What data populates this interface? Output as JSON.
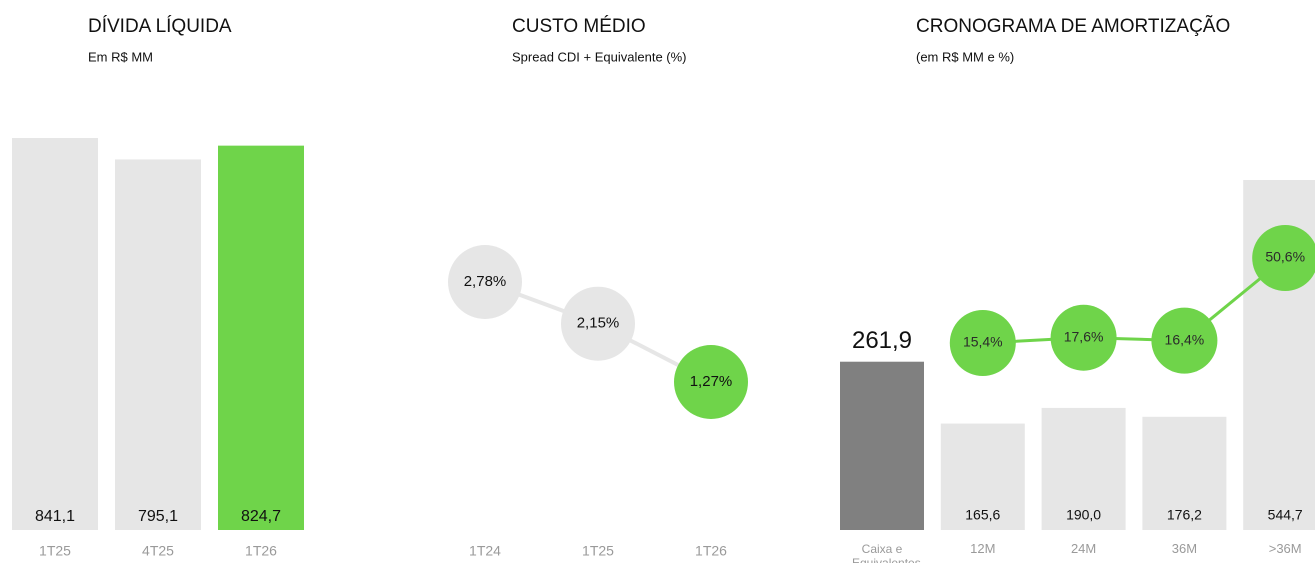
{
  "chart_data": [
    {
      "type": "bar",
      "title": "DÍVIDA LÍQUIDA",
      "subtitle": "Em R$ MM",
      "categories": [
        "1T25",
        "4T25",
        "1T26"
      ],
      "values": [
        841.1,
        795.1,
        824.7
      ],
      "value_labels": [
        "841,1",
        "795,1",
        "824,7"
      ],
      "colors": [
        "#e6e6e6",
        "#e6e6e6",
        "#6fd44a"
      ]
    },
    {
      "type": "line",
      "title": "CUSTO MÉDIO",
      "subtitle": "Spread CDI + Equivalente (%)",
      "categories": [
        "1T24",
        "1T25",
        "1T26"
      ],
      "values": [
        2.78,
        2.15,
        1.27
      ],
      "value_labels": [
        "2,78%",
        "2,15%",
        "1,27%"
      ],
      "colors": [
        "#e6e6e6",
        "#e6e6e6",
        "#6fd44a"
      ],
      "line_color": "#e6e6e6"
    },
    {
      "type": "combo",
      "title": "CRONOGRAMA DE AMORTIZAÇÃO",
      "subtitle": "(em R$ MM e %)",
      "categories": [
        "Caixa e Equivalentes",
        "12M",
        "24M",
        "36M",
        ">36M"
      ],
      "series": [
        {
          "values": [
            261.9,
            165.6,
            190.0,
            176.2,
            544.7
          ],
          "value_labels": [
            "261,9",
            "165,6",
            "190,0",
            "176,2",
            "544,7"
          ],
          "colors": [
            "#808080",
            "#e6e6e6",
            "#e6e6e6",
            "#e6e6e6",
            "#e6e6e6"
          ]
        },
        {
          "values": [
            null,
            15.4,
            17.6,
            16.4,
            50.6
          ],
          "value_labels": [
            null,
            "15,4%",
            "17,6%",
            "16,4%",
            "50,6%"
          ],
          "color": "#6fd44a"
        }
      ]
    }
  ]
}
